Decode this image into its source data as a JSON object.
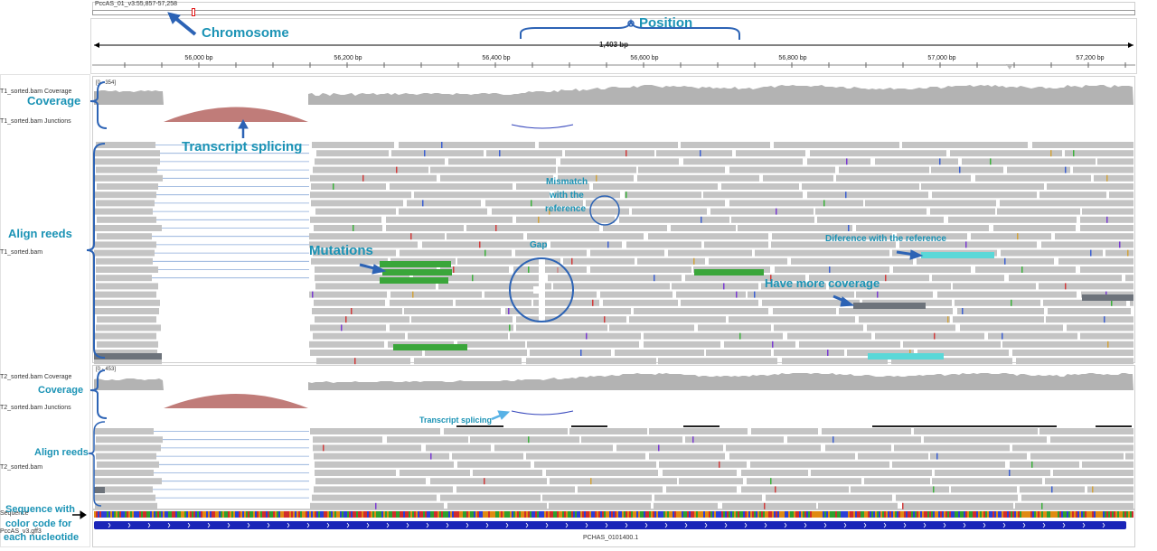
{
  "locus": "PccAS_01_v3:55,857-57,258",
  "span_label": "1,403 bp",
  "ticks": [
    "56,000 bp",
    "56,200 bp",
    "56,400 bp",
    "56,600 bp",
    "56,800 bp",
    "57,000 bp",
    "57,200 bp"
  ],
  "tracks": {
    "t1_coverage": "T1_sorted.bam Coverage",
    "t1_junctions": "T1_sorted.bam Junctions",
    "t1_bam": "T1_sorted.bam",
    "t1_range": "[0 - 354]",
    "t2_coverage": "T2_sorted.bam Coverage",
    "t2_junctions": "T2_sorted.bam Junctions",
    "t2_bam": "T2_sorted.bam",
    "t2_range": "[0 - 453]",
    "sequence": "Sequence",
    "gff": "PccAS_v3.gff3",
    "gene": "PCHAS_0101400.1"
  },
  "annotations": {
    "chromosome": "Chromosome",
    "position": "Position",
    "coverage1": "Coverage",
    "transcript_splicing1": "Transcript splicing",
    "align_reeds1": "Align reeds",
    "mismatch_l1": "Mismatch",
    "mismatch_l2": "with the",
    "mismatch_l3": "reference",
    "gap": "Gap",
    "mutations": "Mutations",
    "difference": "Diference with the reference",
    "more_coverage": "Have more coverage",
    "coverage2": "Coverage",
    "transcript_splicing2": "Transcript splicing",
    "align_reeds2": "Align reeds",
    "sequence_l1": "Sequence with",
    "sequence_l2": "color code for",
    "sequence_l3": "each nucleotide"
  },
  "colors": {
    "accent": "#1b93b5",
    "arrow": "#2c63b5",
    "read": "#c4c4c4",
    "coverage": "#b3b3b3",
    "junction": "#c07c79",
    "mutation_read": "#3aa63a",
    "diff_read": "#5ad8d8",
    "dark_read": "#6d737b",
    "gene": "#1a25b8"
  }
}
